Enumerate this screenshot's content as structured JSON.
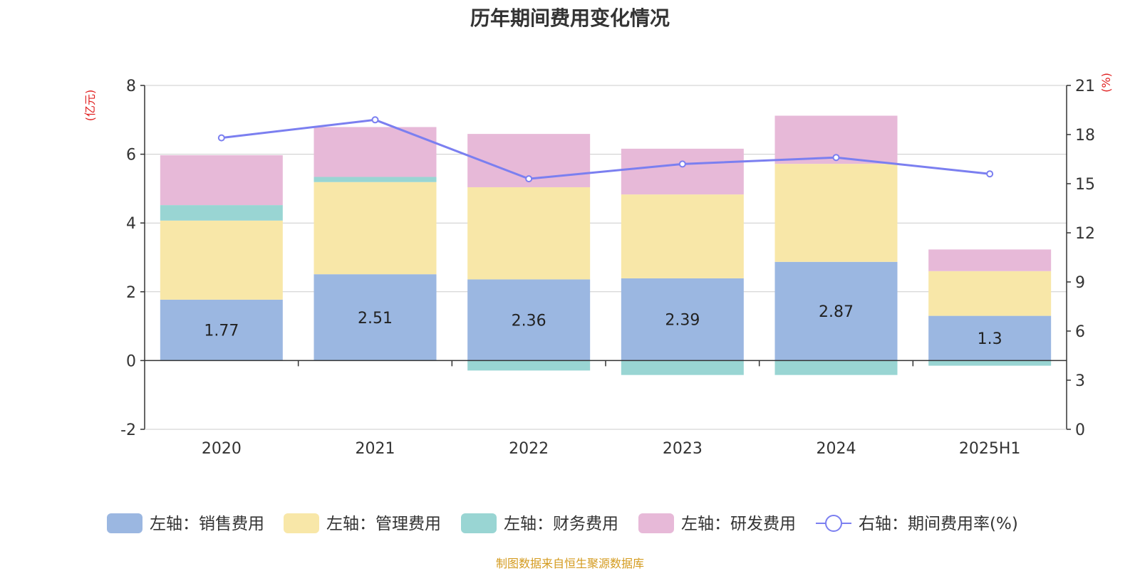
{
  "chart_data": {
    "type": "bar",
    "title": "历年期间费用变化情况",
    "categories": [
      "2020",
      "2021",
      "2022",
      "2023",
      "2024",
      "2025H1"
    ],
    "stacked": true,
    "y_left": {
      "unit_label": "(亿元)",
      "range": [
        -2,
        8
      ],
      "ticks": [
        -2,
        0,
        2,
        4,
        6,
        8
      ]
    },
    "y_right": {
      "unit_label": "(%)",
      "range": [
        0,
        21
      ],
      "ticks": [
        0,
        3,
        6,
        9,
        12,
        15,
        18,
        21
      ]
    },
    "series": [
      {
        "name": "左轴：销售费用",
        "type": "bar",
        "axis": "left",
        "color": "#9bb7e1",
        "values": [
          1.77,
          2.51,
          2.36,
          2.39,
          2.87,
          1.3
        ],
        "data_labels": [
          "1.77",
          "2.51",
          "2.36",
          "2.39",
          "2.87",
          "1.3"
        ]
      },
      {
        "name": "左轴：管理费用",
        "type": "bar",
        "axis": "left",
        "color": "#f8e7a8",
        "values": [
          2.3,
          2.68,
          2.68,
          2.44,
          2.85,
          1.3
        ]
      },
      {
        "name": "左轴：财务费用",
        "type": "bar",
        "axis": "left",
        "color": "#99d5d3",
        "values": [
          0.45,
          0.15,
          -0.29,
          -0.42,
          -0.42,
          -0.15
        ]
      },
      {
        "name": "左轴：研发费用",
        "type": "bar",
        "axis": "left",
        "color": "#e7b9d8",
        "values": [
          1.45,
          1.45,
          1.55,
          1.33,
          1.4,
          0.63
        ]
      },
      {
        "name": "右轴：期间费用率(%)",
        "type": "line",
        "axis": "right",
        "color": "#7b7ff0",
        "values": [
          17.8,
          18.9,
          15.3,
          16.2,
          16.6,
          15.6
        ]
      }
    ],
    "grid": true,
    "legend_position": "bottom"
  },
  "footer": {
    "source": "制图数据来自恒生聚源数据库"
  }
}
